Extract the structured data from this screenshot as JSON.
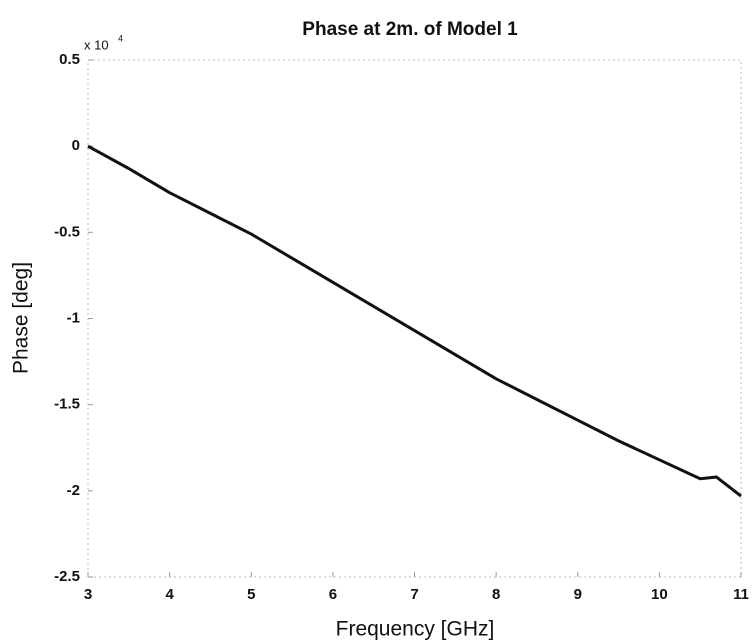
{
  "chart_data": {
    "type": "line",
    "title": "Phase at 2m. of Model 1",
    "x_label": "Frequency [GHz]",
    "y_label": "Phase [deg]",
    "y_multiplier": {
      "base": "x 10",
      "exponent": "4"
    },
    "x": [
      3,
      3.5,
      4,
      4.5,
      5,
      5.5,
      6,
      6.5,
      7,
      7.5,
      8,
      8.5,
      9,
      9.5,
      10,
      10.5,
      10.7,
      11
    ],
    "series": [
      {
        "color": "#111111",
        "values": [
          0,
          -0.13,
          -0.27,
          -0.39,
          -0.51,
          -0.65,
          -0.79,
          -0.93,
          -1.07,
          -1.21,
          -1.35,
          -1.47,
          -1.59,
          -1.71,
          -1.82,
          -1.93,
          -1.92,
          -2.03
        ]
      }
    ],
    "xlim": [
      3,
      11
    ],
    "ylim": [
      -2.5,
      0.5
    ],
    "xticks": [
      3,
      4,
      5,
      6,
      7,
      8,
      9,
      10,
      11
    ],
    "yticks": [
      -2.5,
      -2,
      -1.5,
      -1,
      -0.5,
      0,
      0.5
    ],
    "grid": false
  }
}
